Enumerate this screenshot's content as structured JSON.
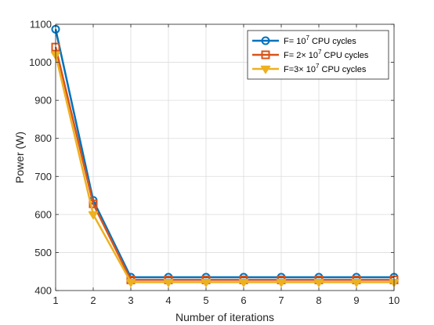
{
  "chart_data": {
    "type": "line",
    "title": "",
    "xlabel": "Number of iterations",
    "ylabel": "Power (W)",
    "x": [
      1,
      2,
      3,
      4,
      5,
      6,
      7,
      8,
      9,
      10
    ],
    "xlim": [
      1,
      10
    ],
    "ylim": [
      400,
      1100
    ],
    "xticks": [
      "1",
      "2",
      "3",
      "4",
      "5",
      "6",
      "7",
      "8",
      "9",
      "10"
    ],
    "yticks": [
      "400",
      "500",
      "600",
      "700",
      "800",
      "900",
      "1000",
      "1100"
    ],
    "grid": true,
    "legend_position": "top-right",
    "series": [
      {
        "name": "F= 10^7 CPU cycles",
        "legend": {
          "pre": "F= 10",
          "sup": "7",
          "post": " CPU cycles"
        },
        "color": "#0072BD",
        "marker": "circle",
        "values": [
          1087,
          637,
          435,
          435,
          435,
          435,
          435,
          435,
          435,
          435
        ]
      },
      {
        "name": "F= 2× 10^7 CPU cycles",
        "legend": {
          "pre": "F= 2× 10",
          "sup": "7",
          "post": " CPU cycles"
        },
        "color": "#D95319",
        "marker": "square",
        "values": [
          1040,
          628,
          428,
          428,
          428,
          428,
          428,
          428,
          428,
          428
        ]
      },
      {
        "name": "F=3× 10^7 CPU cycles",
        "legend": {
          "pre": "F=3× 10",
          "sup": "7",
          "post": " CPU cycles"
        },
        "color": "#EDB120",
        "marker": "triangle-down",
        "values": [
          1020,
          600,
          422,
          422,
          422,
          422,
          422,
          422,
          422,
          422
        ]
      }
    ]
  }
}
